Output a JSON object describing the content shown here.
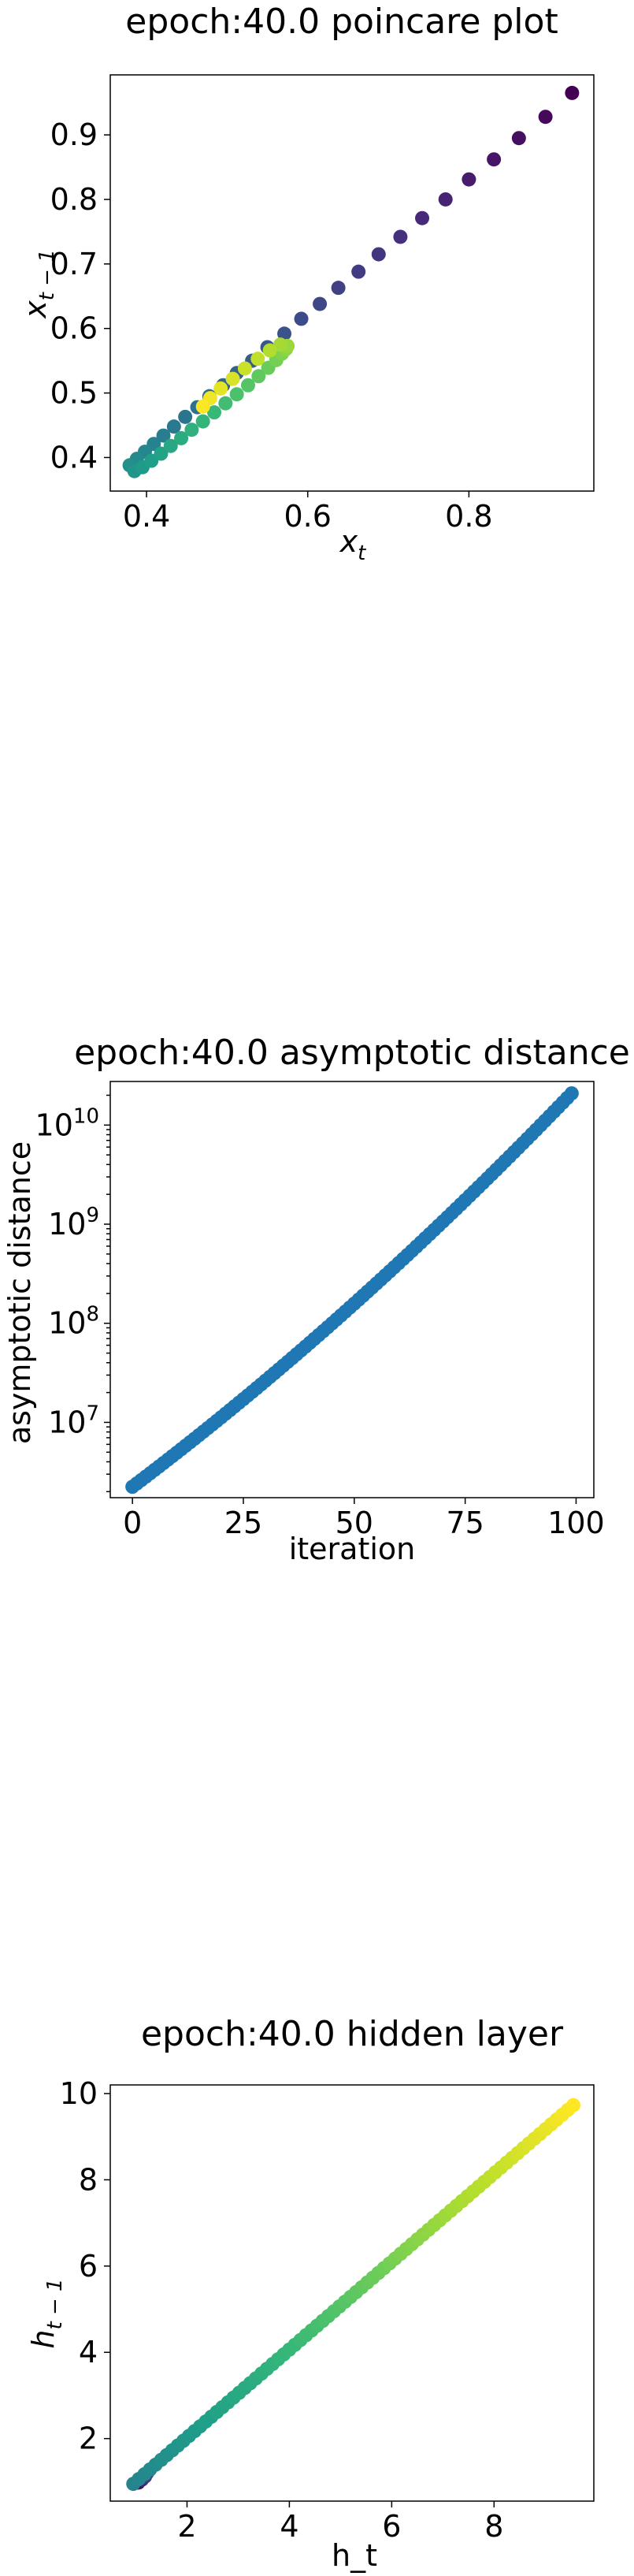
{
  "chart_data": [
    {
      "type": "scatter",
      "title": "epoch:40.0 poincare plot",
      "xlabel": "x_t",
      "ylabel": "x_{t-1}",
      "xlim": [
        0.355,
        0.955
      ],
      "ylim": [
        0.348,
        0.993
      ],
      "xticks": [
        0.4,
        0.6,
        0.8
      ],
      "yticks": [
        0.4,
        0.5,
        0.6,
        0.7,
        0.8,
        0.9
      ],
      "x_tick_labels": [
        "0.4",
        "0.6",
        "0.8"
      ],
      "y_tick_labels": [
        "0.4",
        "0.5",
        "0.6",
        "0.7",
        "0.8",
        "0.9"
      ],
      "colormap": "viridis",
      "series": [
        {
          "x": [
            0.928,
            0.895,
            0.862,
            0.831,
            0.8,
            0.771,
            0.742,
            0.715,
            0.688,
            0.663,
            0.638,
            0.615,
            0.592,
            0.571,
            0.55,
            0.531,
            0.512,
            0.495,
            0.478,
            0.463,
            0.448,
            0.434,
            0.421,
            0.409,
            0.398,
            0.388,
            0.379,
            0.385,
            0.395,
            0.406,
            0.418,
            0.43,
            0.443,
            0.456,
            0.47,
            0.484,
            0.498,
            0.512,
            0.526,
            0.539,
            0.551,
            0.561,
            0.568,
            0.573,
            0.575,
            0.566,
            0.553,
            0.538,
            0.522,
            0.507,
            0.492,
            0.479,
            0.47
          ],
          "y": [
            0.965,
            0.928,
            0.895,
            0.862,
            0.831,
            0.8,
            0.771,
            0.742,
            0.715,
            0.688,
            0.663,
            0.638,
            0.615,
            0.592,
            0.571,
            0.55,
            0.531,
            0.512,
            0.495,
            0.478,
            0.463,
            0.448,
            0.434,
            0.421,
            0.409,
            0.398,
            0.388,
            0.379,
            0.385,
            0.395,
            0.406,
            0.418,
            0.43,
            0.443,
            0.456,
            0.47,
            0.484,
            0.498,
            0.512,
            0.526,
            0.539,
            0.551,
            0.561,
            0.568,
            0.573,
            0.575,
            0.566,
            0.553,
            0.538,
            0.522,
            0.507,
            0.492,
            0.479
          ]
        }
      ]
    },
    {
      "type": "scatter",
      "title": "epoch:40.0 asymptotic distance",
      "xlabel": "iteration",
      "ylabel": "asymptotic distance",
      "yscale": "log",
      "xlim": [
        -5,
        104
      ],
      "ylim_log10": [
        6.24,
        10.44
      ],
      "xticks": [
        0,
        25,
        50,
        75,
        100
      ],
      "x_tick_labels": [
        "0",
        "25",
        "50",
        "75",
        "100"
      ],
      "y_tick_labels": [
        {
          "base": "10",
          "exp": "7",
          "log10": 7
        },
        {
          "base": "10",
          "exp": "8",
          "log10": 8
        },
        {
          "base": "10",
          "exp": "9",
          "log10": 9
        },
        {
          "base": "10",
          "exp": "10",
          "log10": 10
        }
      ],
      "color": "#1f77b4",
      "x_range": [
        0,
        99
      ],
      "log10_start": 6.35,
      "log10_end": 10.32,
      "curvature": 0.45
    },
    {
      "type": "scatter",
      "title": "epoch:40.0 hidden layer",
      "xlabel": "h_t",
      "ylabel": "h_{t-1}",
      "xlim": [
        0.5,
        9.95
      ],
      "ylim": [
        0.55,
        10.2
      ],
      "xticks": [
        2,
        4,
        6,
        8
      ],
      "yticks": [
        2,
        4,
        6,
        8,
        10
      ],
      "x_tick_labels": [
        "2",
        "4",
        "6",
        "8"
      ],
      "y_tick_labels": [
        "2",
        "4",
        "6",
        "8",
        "10"
      ],
      "colormap": "viridis",
      "dark_cluster": {
        "x": [
          1.05,
          1.12,
          1.18,
          1.22
        ],
        "y": [
          0.98,
          1.05,
          1.12,
          1.2
        ]
      },
      "main_line": {
        "start": 0.95,
        "end": 9.55,
        "count": 80
      }
    }
  ]
}
